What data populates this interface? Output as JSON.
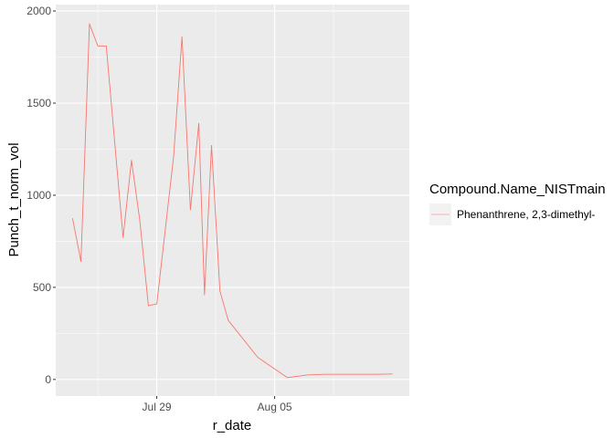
{
  "chart_data": {
    "type": "line",
    "xlabel": "r_date",
    "ylabel": "Punch_t_norm_vol",
    "x_ticks": [
      {
        "label": "Jul 29",
        "value": "2023-07-29"
      },
      {
        "label": "Aug 05",
        "value": "2023-08-05"
      }
    ],
    "y_ticks": [
      0,
      500,
      1000,
      1500,
      2000
    ],
    "xlim": [
      "2023-07-23",
      "2023-08-13"
    ],
    "ylim": [
      -90,
      2035
    ],
    "grid": true,
    "legend": {
      "title": "Compound.Name_NISTmain",
      "position": "right"
    },
    "series": [
      {
        "name": "Phenanthrene, 2,3-dimethyl-",
        "color": "#F8766D",
        "points": [
          {
            "x": "2023-07-24",
            "y": 875
          },
          {
            "x": "2023-07-24T12:00",
            "y": 640
          },
          {
            "x": "2023-07-25",
            "y": 1930
          },
          {
            "x": "2023-07-25T12:00",
            "y": 1810
          },
          {
            "x": "2023-07-26",
            "y": 1810
          },
          {
            "x": "2023-07-27",
            "y": 770
          },
          {
            "x": "2023-07-27T12:00",
            "y": 1190
          },
          {
            "x": "2023-07-28",
            "y": 860
          },
          {
            "x": "2023-07-28T12:00",
            "y": 400
          },
          {
            "x": "2023-07-29",
            "y": 410
          },
          {
            "x": "2023-07-30",
            "y": 1210
          },
          {
            "x": "2023-07-30T12:00",
            "y": 1860
          },
          {
            "x": "2023-07-31",
            "y": 920
          },
          {
            "x": "2023-07-31T12:00",
            "y": 1390
          },
          {
            "x": "2023-07-31T20:00",
            "y": 460
          },
          {
            "x": "2023-08-01T06:00",
            "y": 1270
          },
          {
            "x": "2023-08-01T18:00",
            "y": 480
          },
          {
            "x": "2023-08-02T06:00",
            "y": 320
          },
          {
            "x": "2023-08-04",
            "y": 120
          },
          {
            "x": "2023-08-05T18:00",
            "y": 10
          },
          {
            "x": "2023-08-07",
            "y": 25
          },
          {
            "x": "2023-08-08",
            "y": 28
          },
          {
            "x": "2023-08-09",
            "y": 28
          },
          {
            "x": "2023-08-10",
            "y": 28
          },
          {
            "x": "2023-08-11",
            "y": 28
          },
          {
            "x": "2023-08-12",
            "y": 30
          }
        ]
      }
    ]
  }
}
